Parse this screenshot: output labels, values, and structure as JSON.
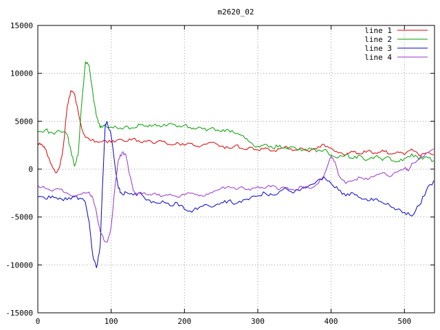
{
  "chart_data": {
    "type": "line",
    "title": "m2620_02",
    "xlabel": "",
    "ylabel": "",
    "xlim": [
      0,
      541
    ],
    "ylim": [
      -15000,
      15000
    ],
    "x_ticks": [
      0,
      100,
      200,
      300,
      400,
      500
    ],
    "y_ticks": [
      -15000,
      -10000,
      -5000,
      0,
      5000,
      10000,
      15000
    ],
    "grid": true,
    "grid_style": "dotted",
    "legend_position": "top-right",
    "background_color": "#ffffff",
    "border_color": "#000000",
    "grid_color": "#9a9a9a",
    "series": [
      {
        "name": "line 1",
        "color": "#dd0000",
        "noise_amplitude": 170,
        "points": [
          [
            0,
            2700
          ],
          [
            5,
            2600
          ],
          [
            10,
            2100
          ],
          [
            15,
            1200
          ],
          [
            20,
            200
          ],
          [
            25,
            -400
          ],
          [
            30,
            300
          ],
          [
            35,
            2500
          ],
          [
            40,
            6500
          ],
          [
            45,
            8200
          ],
          [
            50,
            7900
          ],
          [
            55,
            6000
          ],
          [
            60,
            4200
          ],
          [
            65,
            3300
          ],
          [
            70,
            3100
          ],
          [
            80,
            2900
          ],
          [
            90,
            3000
          ],
          [
            100,
            2800
          ],
          [
            110,
            3100
          ],
          [
            120,
            2900
          ],
          [
            130,
            3200
          ],
          [
            140,
            2800
          ],
          [
            150,
            3000
          ],
          [
            160,
            2700
          ],
          [
            170,
            2900
          ],
          [
            180,
            2600
          ],
          [
            190,
            2800
          ],
          [
            200,
            2500
          ],
          [
            210,
            2700
          ],
          [
            220,
            2300
          ],
          [
            230,
            2600
          ],
          [
            240,
            2800
          ],
          [
            250,
            2400
          ],
          [
            260,
            2200
          ],
          [
            270,
            2500
          ],
          [
            280,
            2100
          ],
          [
            290,
            2300
          ],
          [
            300,
            2000
          ],
          [
            310,
            2200
          ],
          [
            320,
            1900
          ],
          [
            330,
            2100
          ],
          [
            340,
            2300
          ],
          [
            350,
            2000
          ],
          [
            360,
            2200
          ],
          [
            370,
            1800
          ],
          [
            380,
            2100
          ],
          [
            390,
            2600
          ],
          [
            400,
            2200
          ],
          [
            410,
            1700
          ],
          [
            420,
            1500
          ],
          [
            430,
            1800
          ],
          [
            440,
            1600
          ],
          [
            450,
            1900
          ],
          [
            460,
            1700
          ],
          [
            470,
            2000
          ],
          [
            480,
            1600
          ],
          [
            490,
            1800
          ],
          [
            500,
            1500
          ],
          [
            510,
            2100
          ],
          [
            520,
            1400
          ],
          [
            530,
            1700
          ],
          [
            540,
            1500
          ]
        ]
      },
      {
        "name": "line 2",
        "color": "#00a000",
        "noise_amplitude": 220,
        "points": [
          [
            0,
            3900
          ],
          [
            10,
            4100
          ],
          [
            20,
            3800
          ],
          [
            30,
            4000
          ],
          [
            40,
            3600
          ],
          [
            45,
            2000
          ],
          [
            50,
            300
          ],
          [
            55,
            1500
          ],
          [
            60,
            7000
          ],
          [
            65,
            11200
          ],
          [
            70,
            10800
          ],
          [
            75,
            8000
          ],
          [
            80,
            5500
          ],
          [
            85,
            4300
          ],
          [
            90,
            4600
          ],
          [
            100,
            4400
          ],
          [
            110,
            4200
          ],
          [
            120,
            4500
          ],
          [
            130,
            4300
          ],
          [
            140,
            4600
          ],
          [
            150,
            4400
          ],
          [
            160,
            4700
          ],
          [
            170,
            4500
          ],
          [
            180,
            4800
          ],
          [
            190,
            4400
          ],
          [
            200,
            4600
          ],
          [
            210,
            4200
          ],
          [
            220,
            4400
          ],
          [
            230,
            4000
          ],
          [
            240,
            4300
          ],
          [
            250,
            3900
          ],
          [
            260,
            4100
          ],
          [
            270,
            3700
          ],
          [
            280,
            3500
          ],
          [
            290,
            2800
          ],
          [
            300,
            2400
          ],
          [
            310,
            2600
          ],
          [
            320,
            2200
          ],
          [
            330,
            2500
          ],
          [
            340,
            2100
          ],
          [
            350,
            2300
          ],
          [
            360,
            1900
          ],
          [
            370,
            2200
          ],
          [
            380,
            1800
          ],
          [
            390,
            2000
          ],
          [
            400,
            1500
          ],
          [
            410,
            1200
          ],
          [
            420,
            1500
          ],
          [
            430,
            1100
          ],
          [
            440,
            1400
          ],
          [
            450,
            1000
          ],
          [
            460,
            1300
          ],
          [
            470,
            900
          ],
          [
            480,
            1200
          ],
          [
            490,
            800
          ],
          [
            500,
            1100
          ],
          [
            510,
            1600
          ],
          [
            520,
            1000
          ],
          [
            530,
            1300
          ],
          [
            540,
            900
          ]
        ]
      },
      {
        "name": "line 3",
        "color": "#0000cc",
        "noise_amplitude": 220,
        "points": [
          [
            0,
            -2900
          ],
          [
            10,
            -3100
          ],
          [
            20,
            -2800
          ],
          [
            30,
            -3000
          ],
          [
            40,
            -3200
          ],
          [
            50,
            -2900
          ],
          [
            60,
            -3100
          ],
          [
            65,
            -3500
          ],
          [
            70,
            -5500
          ],
          [
            75,
            -9000
          ],
          [
            80,
            -10300
          ],
          [
            85,
            -8000
          ],
          [
            88,
            -2000
          ],
          [
            92,
            4700
          ],
          [
            95,
            4800
          ],
          [
            100,
            3500
          ],
          [
            105,
            500
          ],
          [
            110,
            -2000
          ],
          [
            115,
            -2600
          ],
          [
            120,
            -2400
          ],
          [
            130,
            -2700
          ],
          [
            140,
            -2500
          ],
          [
            150,
            -3200
          ],
          [
            160,
            -3500
          ],
          [
            170,
            -3300
          ],
          [
            180,
            -3800
          ],
          [
            190,
            -3500
          ],
          [
            200,
            -4200
          ],
          [
            210,
            -4500
          ],
          [
            220,
            -4000
          ],
          [
            230,
            -3700
          ],
          [
            240,
            -3900
          ],
          [
            250,
            -3500
          ],
          [
            260,
            -3300
          ],
          [
            270,
            -3600
          ],
          [
            280,
            -3200
          ],
          [
            290,
            -3000
          ],
          [
            300,
            -2800
          ],
          [
            310,
            -2500
          ],
          [
            320,
            -2700
          ],
          [
            330,
            -2300
          ],
          [
            340,
            -2100
          ],
          [
            350,
            -2400
          ],
          [
            360,
            -2000
          ],
          [
            370,
            -1700
          ],
          [
            380,
            -1300
          ],
          [
            390,
            -800
          ],
          [
            400,
            -1500
          ],
          [
            410,
            -2200
          ],
          [
            420,
            -2800
          ],
          [
            430,
            -2500
          ],
          [
            440,
            -3000
          ],
          [
            450,
            -3300
          ],
          [
            460,
            -3100
          ],
          [
            470,
            -3500
          ],
          [
            480,
            -3800
          ],
          [
            490,
            -4200
          ],
          [
            500,
            -4500
          ],
          [
            510,
            -4900
          ],
          [
            520,
            -3800
          ],
          [
            530,
            -2200
          ],
          [
            540,
            -1200
          ]
        ]
      },
      {
        "name": "line 4",
        "color": "#9932cc",
        "noise_amplitude": 170,
        "points": [
          [
            0,
            -1700
          ],
          [
            10,
            -2000
          ],
          [
            20,
            -2300
          ],
          [
            30,
            -2100
          ],
          [
            40,
            -2500
          ],
          [
            50,
            -2800
          ],
          [
            60,
            -2600
          ],
          [
            70,
            -2400
          ],
          [
            75,
            -3000
          ],
          [
            80,
            -4500
          ],
          [
            85,
            -6500
          ],
          [
            90,
            -7400
          ],
          [
            95,
            -7600
          ],
          [
            100,
            -6000
          ],
          [
            105,
            -2000
          ],
          [
            110,
            1000
          ],
          [
            115,
            1700
          ],
          [
            120,
            1500
          ],
          [
            125,
            -500
          ],
          [
            130,
            -2200
          ],
          [
            135,
            -2600
          ],
          [
            140,
            -2400
          ],
          [
            150,
            -2700
          ],
          [
            160,
            -2500
          ],
          [
            170,
            -2800
          ],
          [
            180,
            -2600
          ],
          [
            190,
            -2900
          ],
          [
            200,
            -2700
          ],
          [
            210,
            -2500
          ],
          [
            220,
            -2800
          ],
          [
            230,
            -2600
          ],
          [
            240,
            -2300
          ],
          [
            250,
            -2000
          ],
          [
            260,
            -1800
          ],
          [
            270,
            -2100
          ],
          [
            280,
            -1900
          ],
          [
            290,
            -2200
          ],
          [
            300,
            -1800
          ],
          [
            310,
            -2000
          ],
          [
            320,
            -1700
          ],
          [
            330,
            -2100
          ],
          [
            340,
            -1900
          ],
          [
            350,
            -2200
          ],
          [
            360,
            -1800
          ],
          [
            370,
            -2000
          ],
          [
            380,
            -1600
          ],
          [
            390,
            -700
          ],
          [
            400,
            1400
          ],
          [
            405,
            800
          ],
          [
            410,
            -600
          ],
          [
            420,
            -1500
          ],
          [
            430,
            -1200
          ],
          [
            440,
            -900
          ],
          [
            450,
            -1100
          ],
          [
            460,
            -700
          ],
          [
            470,
            -400
          ],
          [
            480,
            -800
          ],
          [
            490,
            -300
          ],
          [
            500,
            100
          ],
          [
            505,
            -200
          ],
          [
            510,
            600
          ],
          [
            520,
            1100
          ],
          [
            530,
            1700
          ],
          [
            540,
            2100
          ]
        ]
      }
    ]
  }
}
